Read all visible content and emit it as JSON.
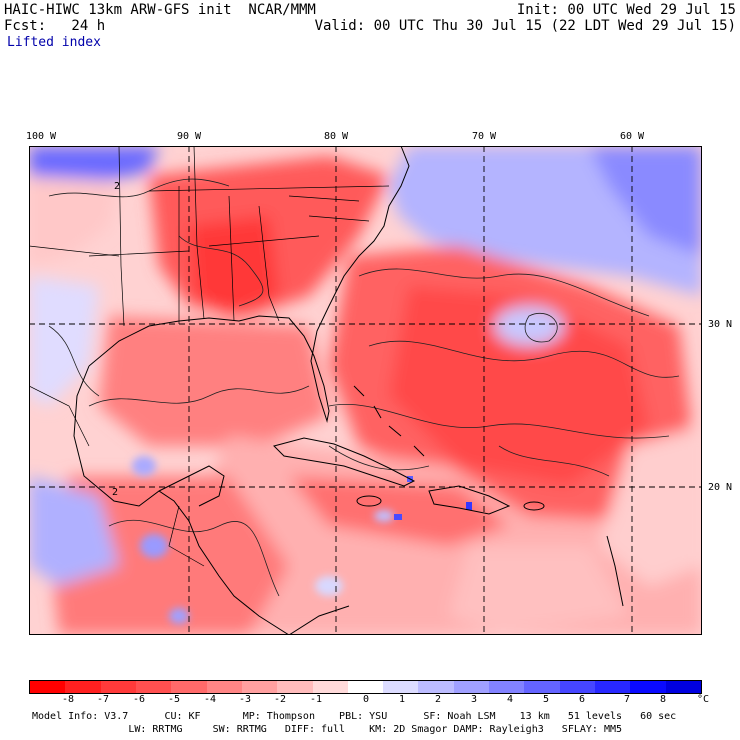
{
  "header": {
    "title": "HAIC-HIWC 13km ARW-GFS init  NCAR/MMM",
    "init": "Init: 00 UTC Wed 29 Jul 15",
    "fcst": "Fcst:   24 h",
    "valid": "Valid: 00 UTC Thu 30 Jul 15 (22 LDT Wed 29 Jul 15)",
    "field": "Lifted index"
  },
  "map": {
    "longitude_labels": [
      "100 W",
      "90 W",
      "80 W",
      "70 W",
      "60 W"
    ],
    "latitude_labels": [
      "30 N",
      "20 N"
    ],
    "contour_labels": [
      "2",
      "2"
    ]
  },
  "colorbar": {
    "ticks": [
      "-8",
      "-7",
      "-6",
      "-5",
      "-4",
      "-3",
      "-2",
      "-1",
      "0",
      "1",
      "2",
      "3",
      "4",
      "5",
      "6",
      "7",
      "8"
    ],
    "unit": "°C",
    "colors": [
      "#ff0000",
      "#ff2020",
      "#ff3a3a",
      "#ff5050",
      "#ff6a6a",
      "#ff8585",
      "#ffa0a0",
      "#ffbcbc",
      "#ffdada",
      "#ffffff",
      "#dcdcff",
      "#bcbcff",
      "#a0a0ff",
      "#8282ff",
      "#6464ff",
      "#4646ff",
      "#2828ff",
      "#0a0aff",
      "#0000e0"
    ]
  },
  "footer": {
    "line1": "Model Info: V3.7      CU: KF       MP: Thompson    PBL: YSU      SF: Noah LSM    13 km   51 levels   60 sec",
    "line2": "                LW: RRTMG     SW: RRTMG   DIFF: full    KM: 2D Smagor DAMP: Rayleigh3   SFLAY: MM5"
  }
}
